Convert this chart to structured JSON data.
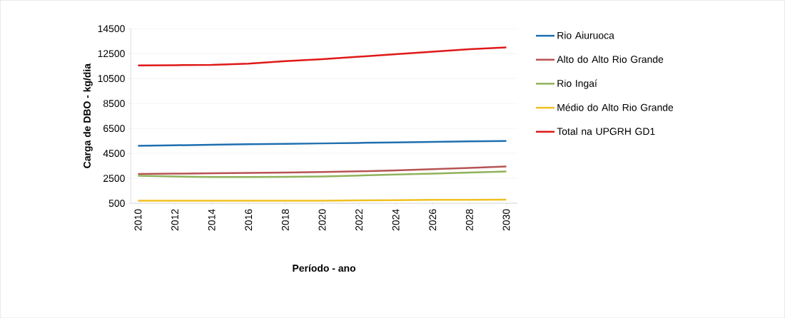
{
  "chart_data": {
    "type": "line",
    "xlabel": "Período - ano",
    "ylabel": "Carga de DBO - kg/dia",
    "x": [
      2010,
      2012,
      2014,
      2016,
      2018,
      2020,
      2022,
      2024,
      2026,
      2028,
      2030
    ],
    "xlim": [
      2009.6,
      2030.6
    ],
    "xticks": [
      2010,
      2012,
      2014,
      2016,
      2018,
      2020,
      2022,
      2024,
      2026,
      2028,
      2030
    ],
    "ylim": [
      500,
      14500
    ],
    "yticks": [
      500,
      2500,
      4500,
      6500,
      8500,
      10500,
      12500,
      14500
    ],
    "grid": "y",
    "legend": "right",
    "line_style": "solid",
    "marker": "none",
    "series": [
      {
        "name": "Rio Aiuruoca",
        "color": "#1f6fb0",
        "values": [
          5100,
          5150,
          5190,
          5230,
          5270,
          5300,
          5340,
          5380,
          5420,
          5460,
          5500
        ]
      },
      {
        "name": "Alto do Alto Rio Grande",
        "color": "#b65453",
        "values": [
          2850,
          2880,
          2900,
          2930,
          2960,
          3000,
          3060,
          3140,
          3230,
          3330,
          3450
        ]
      },
      {
        "name": "Rio Ingaí",
        "color": "#8fb25a",
        "values": [
          2700,
          2650,
          2600,
          2600,
          2620,
          2650,
          2720,
          2800,
          2880,
          2960,
          3050
        ]
      },
      {
        "name": "Médio do Alto Rio Grande",
        "color": "#f0c020",
        "values": [
          700,
          700,
          700,
          700,
          700,
          710,
          730,
          750,
          770,
          780,
          790
        ]
      },
      {
        "name": "Total na UPGRH GD1",
        "color": "#e01818",
        "values": [
          11550,
          11570,
          11600,
          11700,
          11900,
          12050,
          12250,
          12450,
          12650,
          12850,
          13000
        ]
      }
    ]
  }
}
